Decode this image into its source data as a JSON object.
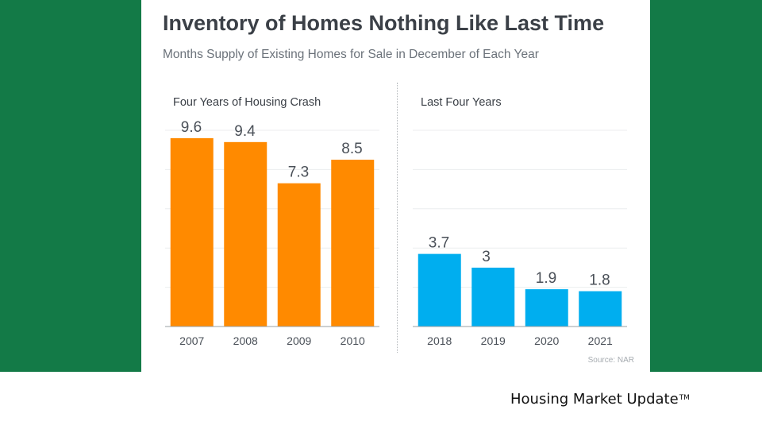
{
  "title": "Inventory of Homes Nothing Like Last Time",
  "subtitle": "Months Supply of Existing Homes for Sale in December of Each Year",
  "source": "Source: NAR",
  "footer": {
    "text": "Housing Market Update",
    "mark": "TM"
  },
  "colors": {
    "background": "#137a47",
    "crash_bars": "#ff8a00",
    "recent_bars": "#00aeef"
  },
  "chart_data": [
    {
      "type": "bar",
      "title": "Four Years of Housing Crash",
      "categories": [
        "2007",
        "2008",
        "2009",
        "2010"
      ],
      "values": [
        9.6,
        9.4,
        7.3,
        8.5
      ],
      "value_labels": [
        "9.6",
        "9.4",
        "7.3",
        "8.5"
      ],
      "ylim": [
        0,
        10
      ],
      "grid": true,
      "color": "#ff8a00"
    },
    {
      "type": "bar",
      "title": "Last Four Years",
      "categories": [
        "2018",
        "2019",
        "2020",
        "2021"
      ],
      "values": [
        3.7,
        3,
        1.9,
        1.8
      ],
      "value_labels": [
        "3.7",
        "3",
        "1.9",
        "1.8"
      ],
      "ylim": [
        0,
        10
      ],
      "grid": true,
      "color": "#00aeef"
    }
  ]
}
